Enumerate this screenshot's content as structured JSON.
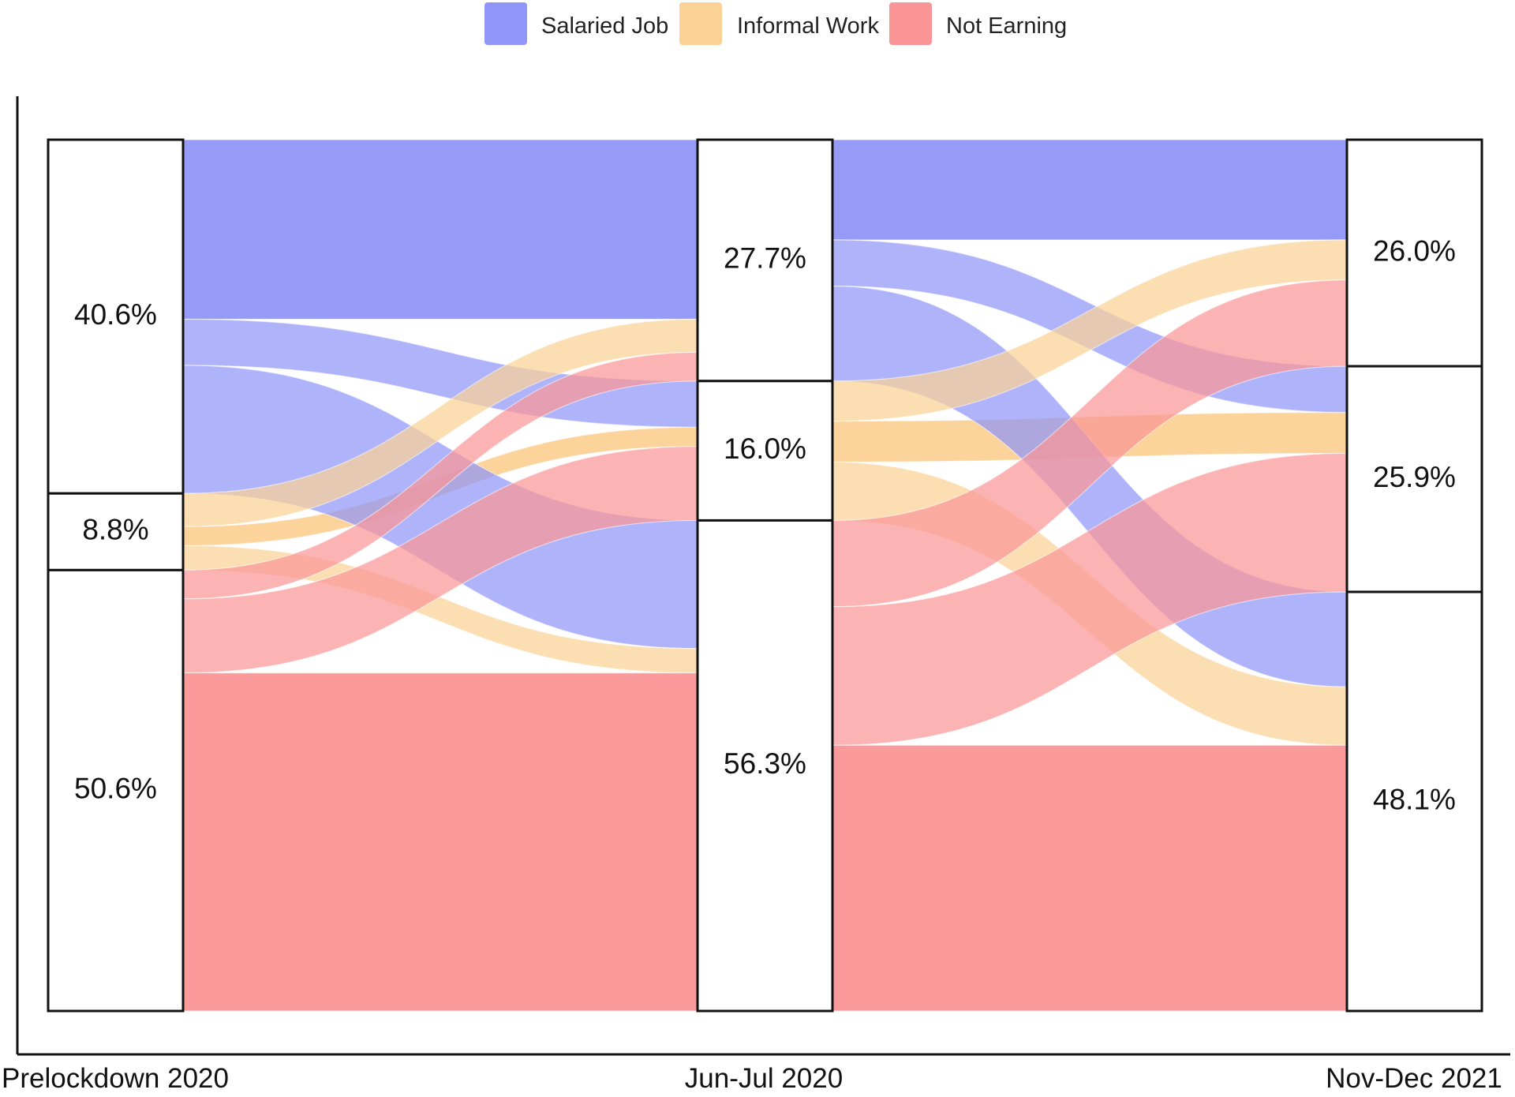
{
  "legend": {
    "items": [
      {
        "label": "Salaried Job",
        "color": "#9096f8"
      },
      {
        "label": "Informal Work",
        "color": "#fbd196"
      },
      {
        "label": "Not Earning",
        "color": "#fa9595"
      }
    ]
  },
  "chart_data": {
    "type": "alluvial",
    "title": "",
    "stages": [
      "Prelockdown 2020",
      "Jun-Jul 2020",
      "Nov-Dec 2021"
    ],
    "categories": [
      "Salaried Job",
      "Informal Work",
      "Not Earning"
    ],
    "stage_shares_pct": [
      [
        40.6,
        8.8,
        50.6
      ],
      [
        27.7,
        16.0,
        56.3
      ],
      [
        26.0,
        25.9,
        48.1
      ]
    ],
    "stage_labels": [
      [
        "40.6%",
        "8.8%",
        "50.6%"
      ],
      [
        "27.7%",
        "16.0%",
        "56.3%"
      ],
      [
        "26.0%",
        "25.9%",
        "48.1%"
      ]
    ],
    "flows_stage1_to_stage2_pct": {
      "Salaried Job": {
        "Salaried Job": 20.6,
        "Informal Work": 5.3,
        "Not Earning": 14.7
      },
      "Informal Work": {
        "Salaried Job": 3.8,
        "Informal Work": 2.2,
        "Not Earning": 2.8
      },
      "Not Earning": {
        "Salaried Job": 3.3,
        "Informal Work": 8.5,
        "Not Earning": 38.8
      }
    },
    "flows_stage2_to_stage3_pct": {
      "Salaried Job": {
        "Salaried Job": 11.5,
        "Informal Work": 5.3,
        "Not Earning": 10.9
      },
      "Informal Work": {
        "Salaried Job": 4.6,
        "Informal Work": 4.7,
        "Not Earning": 6.7
      },
      "Not Earning": {
        "Salaried Job": 9.9,
        "Informal Work": 15.9,
        "Not Earning": 30.5
      }
    },
    "color_by": "origin category"
  }
}
